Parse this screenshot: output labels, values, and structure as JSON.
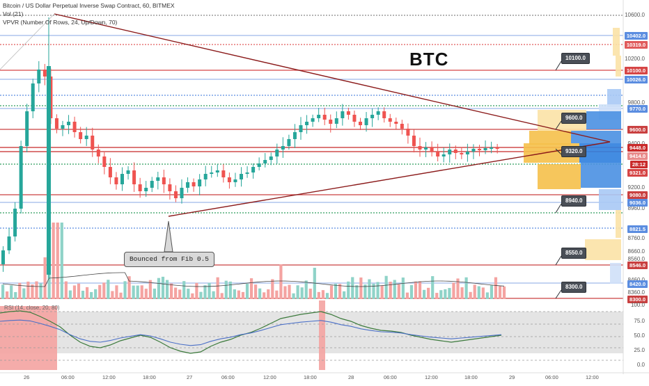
{
  "legend": {
    "symbol": "Bitcoin / US Dollar Perpetual Inverse Swap Contract, 60, BITMEX",
    "vol": "Vol (21)",
    "vpvr": "VPVR (Number Of Rows, 24, Up/Down, 70)"
  },
  "title": "BTC",
  "annotation": "Bounced from Fib 0.5",
  "rsi_label": "RSI (14, close, 20, 80)",
  "price_axis": [
    "10600.0",
    "10200.0",
    "9800.0",
    "9400.0",
    "9200.0",
    "8960.0",
    "8760.0",
    "8660.0",
    "8560.0",
    "8460.0",
    "8360.0"
  ],
  "price_tags": [
    {
      "label": "10402.0",
      "color": "#5b8de0"
    },
    {
      "label": "10319.0",
      "color": "#e05b5b"
    },
    {
      "label": "10100.0",
      "color": "#d64545"
    },
    {
      "label": "10026.0",
      "color": "#5b8de0"
    },
    {
      "label": "9770.0",
      "color": "#5b8de0"
    },
    {
      "label": "9600.0",
      "color": "#c94040"
    },
    {
      "label": "9448.0",
      "color": "#c92a2a"
    },
    {
      "label": "9414.0",
      "color": "#e88a8a"
    },
    {
      "label": "28:12",
      "color": "#c92a2a"
    },
    {
      "label": "9321.0",
      "color": "#d64545"
    },
    {
      "label": "9080.0",
      "color": "#c94040"
    },
    {
      "label": "9036.0",
      "color": "#5b8de0"
    },
    {
      "label": "8821.5",
      "color": "#5b8de0"
    },
    {
      "label": "8546.0",
      "color": "#c94040"
    },
    {
      "label": "8420.0",
      "color": "#5b8de0"
    },
    {
      "label": "8300.0",
      "color": "#c94040"
    }
  ],
  "callouts": [
    "10100.0",
    "9600.0",
    "9320.0",
    "8940.0",
    "8550.0",
    "8300.0"
  ],
  "rsi_axis": [
    "100.0",
    "75.0",
    "50.0",
    "25.0",
    "0.0"
  ],
  "time_axis": [
    "26",
    "06:00",
    "12:00",
    "18:00",
    "27",
    "06:00",
    "12:00",
    "18:00",
    "28",
    "06:00",
    "12:00",
    "18:00",
    "29",
    "06:00",
    "12:00"
  ],
  "colors": {
    "up": "#26a69a",
    "down": "#ef5350",
    "resistance": "#c62828",
    "support": "#5b8de0",
    "triangle": "#8b1a1a"
  }
}
